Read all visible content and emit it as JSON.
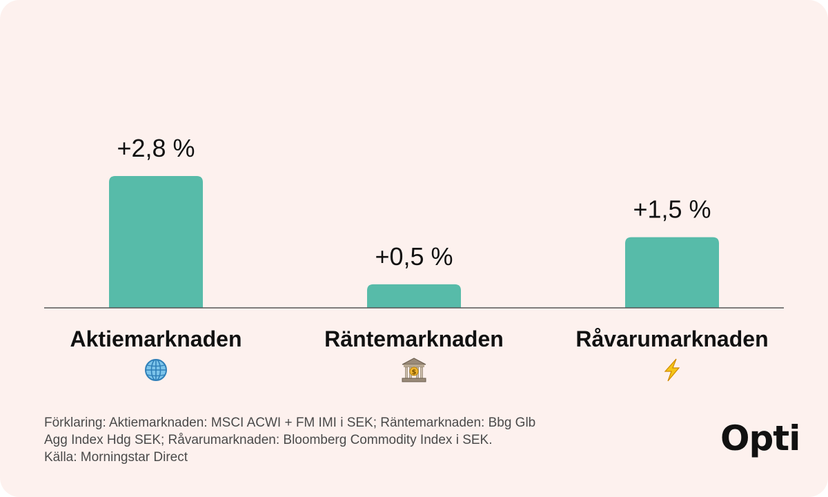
{
  "colors": {
    "background": "#fdf1ee",
    "bar": "#57bba9",
    "axis": "#555555",
    "text": "#111111"
  },
  "chart_data": {
    "type": "bar",
    "title": "",
    "xlabel": "",
    "ylabel": "",
    "categories": [
      "Aktiemarknaden",
      "Räntemarknaden",
      "Råvarumarknaden"
    ],
    "values": [
      2.8,
      0.5,
      1.5
    ],
    "value_labels": [
      "+2,8 %",
      "+0,5 %",
      "+1,5 %"
    ],
    "icons": [
      "globe-icon",
      "bank-icon",
      "lightning-icon"
    ],
    "ylim": [
      0,
      3.5
    ],
    "grid": false,
    "legend": "none"
  },
  "footnote": {
    "line1": "Förklaring: Aktiemarknaden: MSCI ACWI + FM IMI i SEK; Räntemarknaden: Bbg Glb",
    "line2": "Agg Index Hdg SEK; Råvarumarknaden: Bloomberg Commodity Index i SEK.",
    "line3": "Källa: Morningstar Direct"
  },
  "brand": {
    "logo_text": "Opti"
  }
}
